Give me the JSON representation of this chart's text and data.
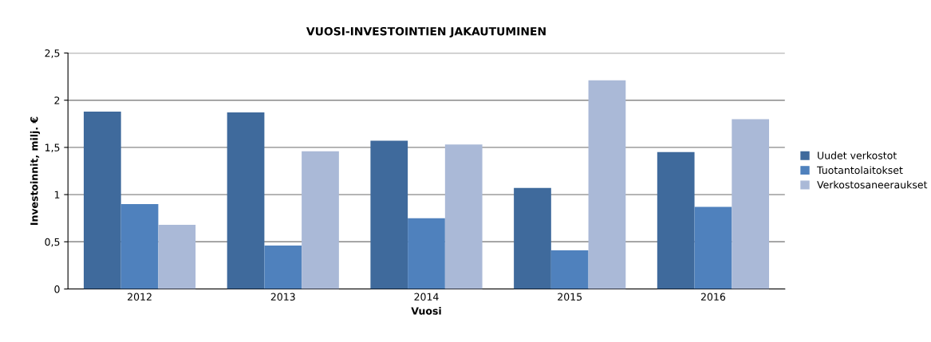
{
  "chart_data": {
    "type": "bar",
    "title": "VUOSI-INVESTOINTIEN JAKAUTUMINEN",
    "xlabel": "Vuosi",
    "ylabel": "Investoinnit, milj. €",
    "categories": [
      "2012",
      "2013",
      "2014",
      "2015",
      "2016"
    ],
    "series": [
      {
        "name": "Uudet verkostot",
        "color": "#3f6a9c",
        "values": [
          1.88,
          1.87,
          1.57,
          1.07,
          1.45
        ]
      },
      {
        "name": "Tuotantolaitokset",
        "color": "#4f81bd",
        "values": [
          0.9,
          0.46,
          0.75,
          0.41,
          0.87
        ]
      },
      {
        "name": "Verkostosaneeraukset",
        "color": "#aab9d7",
        "values": [
          0.68,
          1.46,
          1.53,
          2.21,
          1.8
        ]
      }
    ],
    "ylim": [
      0,
      2.5
    ],
    "yticks": [
      0,
      {
        "value": 0.5,
        "label": "0,5"
      },
      1,
      {
        "value": 1.5,
        "label": "1,5"
      },
      2,
      {
        "value": 2.5,
        "label": "2,5"
      }
    ],
    "grid": "y",
    "legend": "right"
  }
}
